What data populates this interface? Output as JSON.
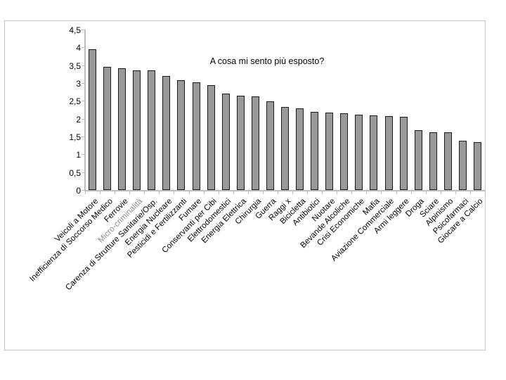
{
  "chart_data": {
    "type": "bar",
    "title": "A cosa mi sento più esposto?",
    "categories": [
      "Veicoli a Motore",
      "Inefficienza di Soccorso Medico",
      "Ferrovie",
      "Micro-criminalità",
      "Carenza di Strutture Sanitarie/Osp.",
      "Energia Nucleare",
      "Pesticidi e Fertilizzanti",
      "Fumare",
      "Conservanti per Cibi",
      "Elettrodomestici",
      "Energia Elettrica",
      "Chirurgia",
      "Guerra",
      "Raggi x",
      "Bicicletta",
      "Antibiotici",
      "Nuotare",
      "Bevande Alcoliche",
      "Crisi Economiche",
      "Mafia",
      "Aviazione Commerciale",
      "Armi leggere",
      "Droga",
      "Sciare",
      "Alpinismo",
      "Psicofarmaci",
      "Giocare a Calcio"
    ],
    "values": [
      3.95,
      3.45,
      3.42,
      3.35,
      3.35,
      3.2,
      3.07,
      3.02,
      2.95,
      2.7,
      2.65,
      2.62,
      2.48,
      2.32,
      2.28,
      2.2,
      2.17,
      2.15,
      2.12,
      2.1,
      2.07,
      2.05,
      1.68,
      1.62,
      1.62,
      1.38,
      1.35
    ],
    "xlabel": "",
    "ylabel": "",
    "ylim": [
      0,
      4.5
    ],
    "ytick_step": 0.5,
    "ytick_labels": [
      "0",
      "0,5",
      "1",
      "1,5",
      "2",
      "2,5",
      "3",
      "3,5",
      "4",
      "4,5"
    ],
    "grid": false,
    "legend": "none",
    "muted_category": "Micro-criminalità",
    "colors": {
      "bar_fill": "#999999",
      "bar_border": "#1a1a1a",
      "axis": "#bdbdbd",
      "frame_border": "#c4c4c4",
      "label": "#000000",
      "muted_label": "#8a8a8a"
    }
  }
}
